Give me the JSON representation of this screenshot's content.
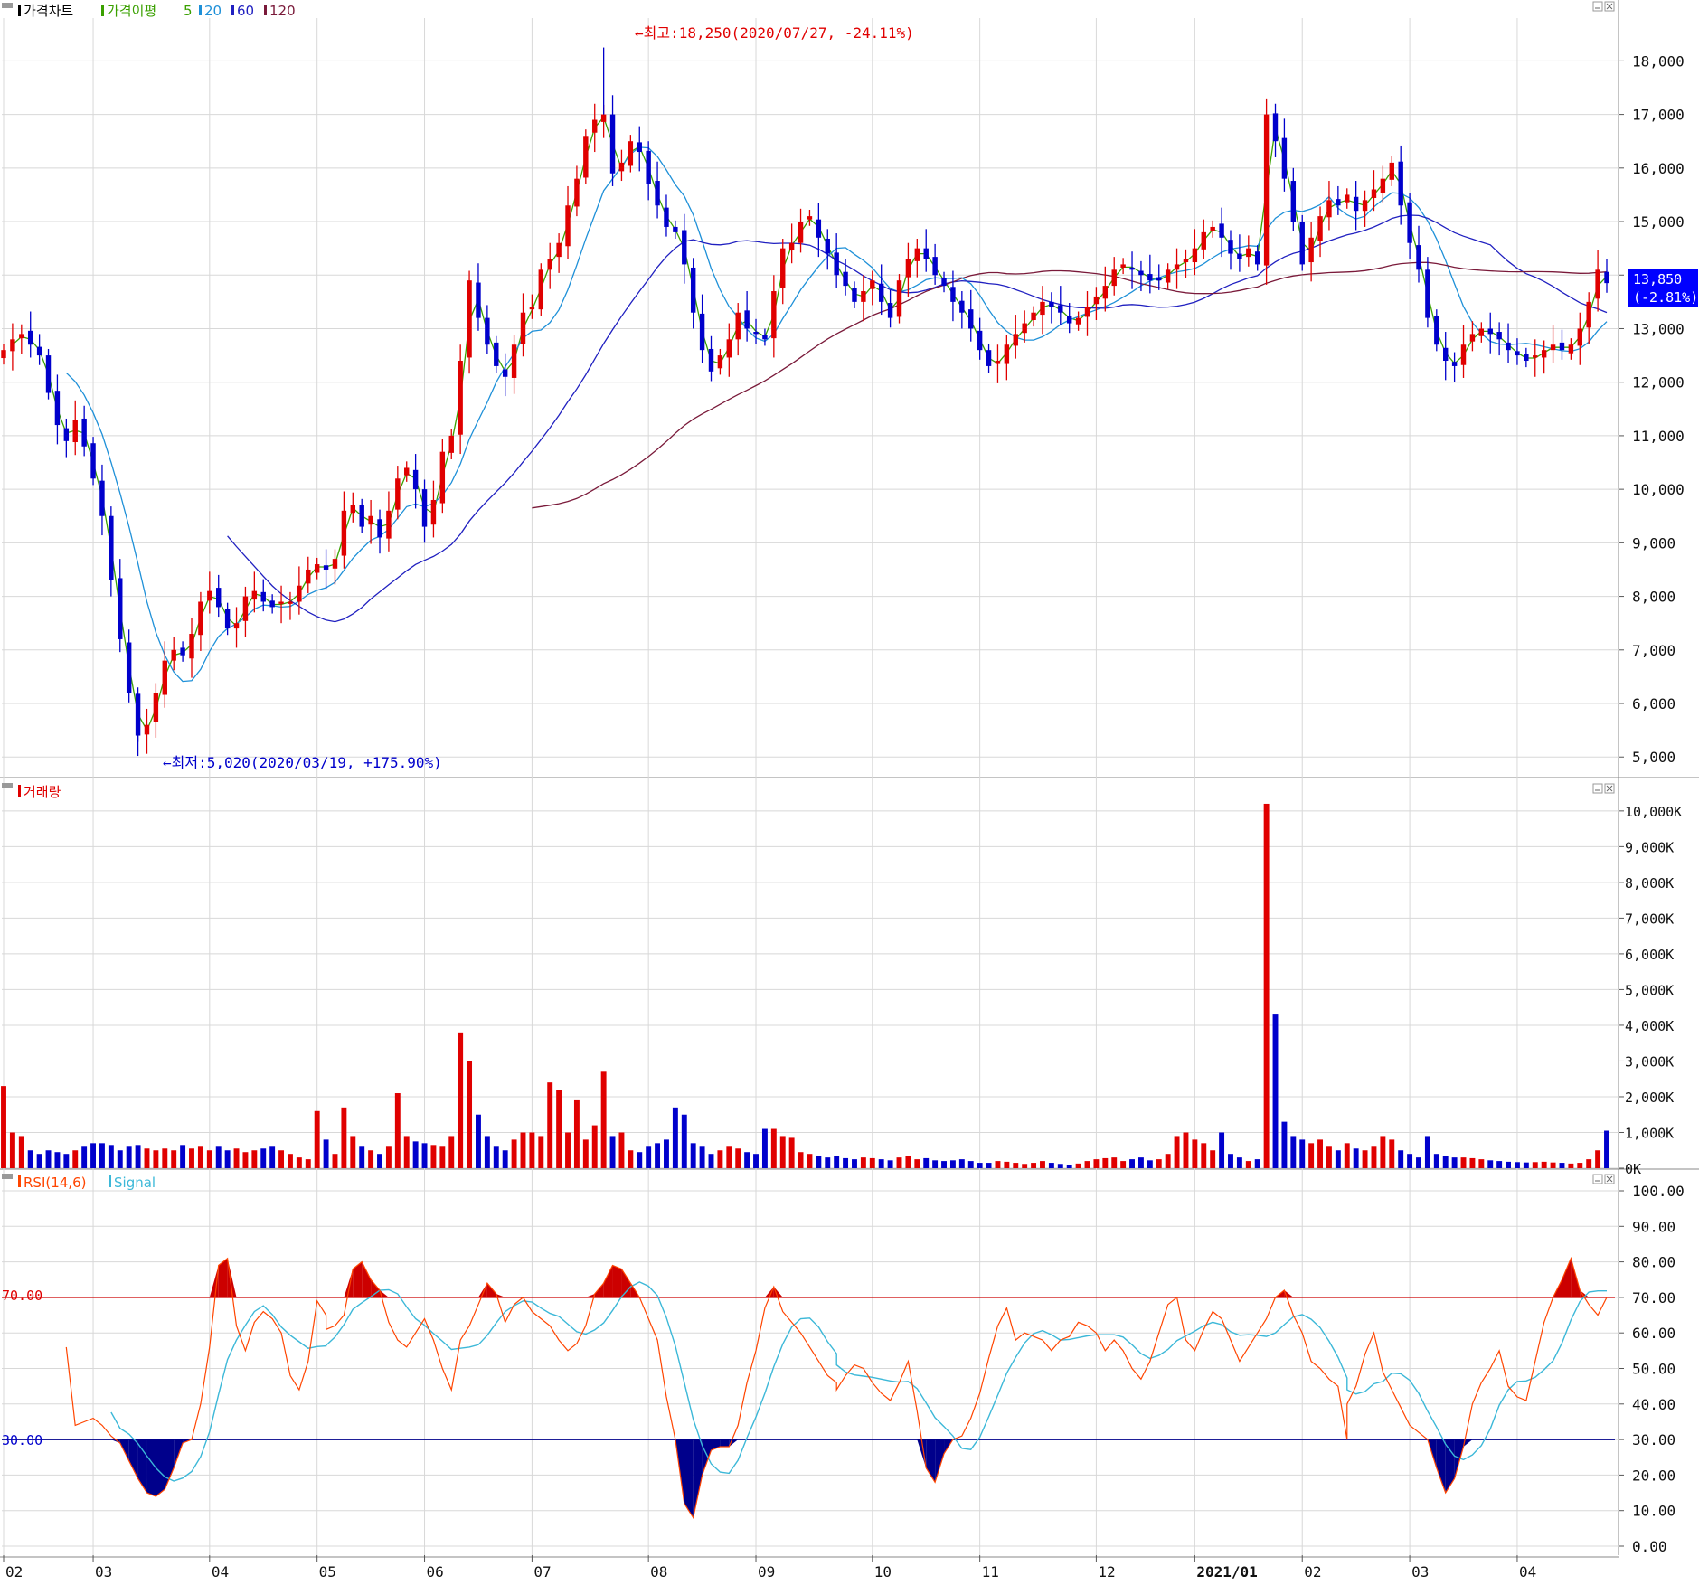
{
  "price_panel": {
    "legend": {
      "title": "가격차트",
      "ma_label": "가격이평",
      "ma_periods": [
        "5",
        "20",
        "60",
        "120"
      ]
    },
    "axis": {
      "ticks": [
        "18,000",
        "17,000",
        "16,000",
        "15,000",
        "14,000",
        "13,000",
        "12,000",
        "11,000",
        "10,000",
        "9,000",
        "8,000",
        "7,000",
        "6,000",
        "5,000"
      ]
    },
    "high_annotation": "←최고:18,250(2020/07/27, -24.11%)",
    "low_annotation": "←최저:5,020(2020/03/19, +175.90%)",
    "current_price": "13,850",
    "current_change": "(-2.81%)"
  },
  "volume_panel": {
    "legend": {
      "title": "거래량"
    },
    "axis": {
      "ticks": [
        "10,000K",
        "9,000K",
        "8,000K",
        "7,000K",
        "6,000K",
        "5,000K",
        "4,000K",
        "3,000K",
        "2,000K",
        "1,000K",
        "0K"
      ]
    }
  },
  "rsi_panel": {
    "legend": {
      "rsi": "RSI(14,6)",
      "signal": "Signal"
    },
    "axis": {
      "ticks": [
        "100.00",
        "90.00",
        "80.00",
        "70.00",
        "60.00",
        "50.00",
        "40.00",
        "30.00",
        "20.00",
        "10.00",
        "0.00"
      ]
    },
    "upper_label": "70.00",
    "lower_label": "30.00"
  },
  "x_axis": {
    "labels": [
      "02",
      "03",
      "04",
      "05",
      "06",
      "07",
      "08",
      "09",
      "10",
      "11",
      "12",
      "2021/01",
      "02",
      "03",
      "04"
    ]
  },
  "colors": {
    "up": "#e00000",
    "down": "#0000cc",
    "ma5": "#3aa000",
    "ma20": "#1e90d8",
    "ma60": "#2020c0",
    "ma120": "#7a1a3a",
    "rsi": "#ff4500",
    "signal": "#3cb8d8",
    "grid": "#d8d8d8",
    "current_bg": "#0000ff"
  },
  "chart_data": [
    {
      "type": "candlestick",
      "title": "가격차트",
      "ylim": [
        4700,
        18800
      ],
      "high": {
        "value": 18250,
        "date": "2020/07/27"
      },
      "low": {
        "value": 5020,
        "date": "2020/03/19"
      },
      "last": 13850,
      "months": [
        "02",
        "03",
        "04",
        "05",
        "06",
        "07",
        "08",
        "09",
        "10",
        "11",
        "12",
        "2021/01",
        "02",
        "03",
        "04"
      ],
      "closes": [
        12600,
        12800,
        12900,
        12700,
        12500,
        11800,
        11200,
        10900,
        11300,
        10800,
        10200,
        9500,
        8300,
        7200,
        6200,
        5400,
        5600,
        6200,
        6800,
        7000,
        6900,
        7300,
        7900,
        8100,
        7800,
        7400,
        7500,
        8000,
        8100,
        7900,
        7800,
        7900,
        7900,
        8200,
        8500,
        8600,
        8500,
        8700,
        9600,
        9700,
        9300,
        9500,
        9100,
        9600,
        10200,
        10400,
        10000,
        9300,
        9800,
        10700,
        11000,
        12400,
        13900,
        13200,
        12700,
        12300,
        12100,
        12700,
        13300,
        13400,
        14100,
        14300,
        14600,
        15300,
        15800,
        16600,
        16900,
        17000,
        15900,
        16100,
        16500,
        16300,
        15700,
        15300,
        14900,
        14800,
        14200,
        13300,
        12600,
        12200,
        12500,
        12800,
        13300,
        13000,
        12900,
        12800,
        13700,
        14500,
        14600,
        15000,
        15100,
        14700,
        14400,
        14000,
        13800,
        13500,
        13700,
        13900,
        13500,
        13200,
        13900,
        14300,
        14500,
        14300,
        14000,
        13800,
        13500,
        13300,
        13000,
        12600,
        12300,
        12400,
        12700,
        12900,
        13100,
        13300,
        13500,
        13400,
        13300,
        13100,
        13200,
        13400,
        13600,
        13800,
        14100,
        14200,
        14100,
        14000,
        13900,
        13900,
        14100,
        14200,
        14300,
        14500,
        14800,
        14900,
        14700,
        14400,
        14300,
        14500,
        14200,
        17000,
        16500,
        15800,
        15000,
        14200,
        14700,
        15100,
        15400,
        15300,
        15500,
        15200,
        15400,
        15600,
        15800,
        16100,
        15300,
        14600,
        14100,
        13200,
        12700,
        12400,
        12300,
        12700,
        12900,
        13000,
        12900,
        12800,
        12600,
        12500,
        12400,
        12500,
        12600,
        12700,
        12600,
        12700,
        13000,
        13500,
        14100,
        13850
      ]
    },
    {
      "type": "bar",
      "title": "거래량",
      "unit": "K",
      "ylim": [
        0,
        10300
      ],
      "peak": 10200,
      "values": [
        2300,
        1000,
        900,
        500,
        400,
        500,
        450,
        400,
        500,
        600,
        700,
        700,
        650,
        500,
        600,
        650,
        550,
        500,
        550,
        500,
        650,
        550,
        600,
        500,
        600,
        500,
        550,
        450,
        500,
        550,
        600,
        500,
        400,
        300,
        250,
        1600,
        800,
        400,
        1700,
        900,
        600,
        500,
        400,
        600,
        2100,
        900,
        750,
        700,
        650,
        600,
        900,
        3800,
        3000,
        1500,
        900,
        600,
        500,
        800,
        1000,
        1000,
        900,
        2400,
        2200,
        1000,
        1900,
        800,
        1200,
        2700,
        900,
        1000,
        500,
        450,
        600,
        700,
        800,
        1700,
        1500,
        700,
        600,
        400,
        500,
        600,
        550,
        450,
        400,
        1100,
        1100,
        900,
        850,
        450,
        400,
        350,
        300,
        350,
        280,
        250,
        300,
        280,
        250,
        220,
        300,
        350,
        250,
        280,
        220,
        200,
        220,
        250,
        200,
        150,
        150,
        200,
        180,
        150,
        120,
        150,
        200,
        150,
        120,
        100,
        130,
        200,
        250,
        280,
        300,
        200,
        250,
        300,
        220,
        250,
        400,
        900,
        1000,
        800,
        700,
        500,
        1000,
        400,
        300,
        200,
        250,
        10200,
        4300,
        1300,
        900,
        800,
        700,
        800,
        600,
        500,
        700,
        550,
        500,
        600,
        900,
        800,
        500,
        400,
        300,
        900,
        400,
        350,
        300,
        300,
        280,
        250,
        220,
        200,
        180,
        170,
        160,
        170,
        180,
        160,
        150,
        130,
        150,
        250,
        500,
        1050
      ]
    },
    {
      "type": "line",
      "title": "RSI(14,6)",
      "series_names": [
        "RSI(14,6)",
        "Signal"
      ],
      "ylim": [
        0,
        100
      ],
      "levels": [
        70,
        30
      ],
      "rsi": [
        56,
        34,
        35,
        36,
        34,
        31,
        29,
        24,
        19,
        15,
        14,
        16,
        22,
        29,
        30,
        40,
        56,
        79,
        81,
        62,
        55,
        63,
        66,
        64,
        60,
        48,
        44,
        52,
        69,
        65,
        61,
        62,
        65,
        78,
        80,
        75,
        72,
        63,
        58,
        56,
        60,
        64,
        58,
        50,
        44,
        58,
        62,
        68,
        74,
        71,
        63,
        68,
        70,
        66,
        64,
        62,
        58,
        55,
        57,
        62,
        71,
        74,
        79,
        78,
        74,
        70,
        64,
        58,
        42,
        30,
        12,
        8,
        20,
        27,
        28,
        28,
        34,
        46,
        55,
        67,
        73,
        66,
        63,
        60,
        56,
        52,
        48,
        46,
        44,
        48,
        51,
        50,
        46,
        43,
        41,
        46,
        52,
        38,
        22,
        18,
        26,
        30,
        31,
        36,
        43,
        53,
        62,
        67,
        58,
        60,
        59,
        58,
        55,
        58,
        59,
        63,
        62,
        60,
        55,
        58,
        55,
        50,
        47,
        52,
        60,
        68,
        70,
        58,
        55,
        61,
        66,
        64,
        58,
        52,
        56,
        60,
        64,
        70,
        72,
        65,
        60,
        52,
        50,
        47,
        45,
        30,
        40,
        45,
        54,
        60,
        49,
        44,
        39,
        34,
        32,
        30,
        22,
        15,
        19,
        28,
        40,
        46,
        50,
        55,
        45,
        42,
        41,
        52,
        63,
        70,
        75,
        81,
        72,
        68,
        65,
        70
      ]
    }
  ]
}
